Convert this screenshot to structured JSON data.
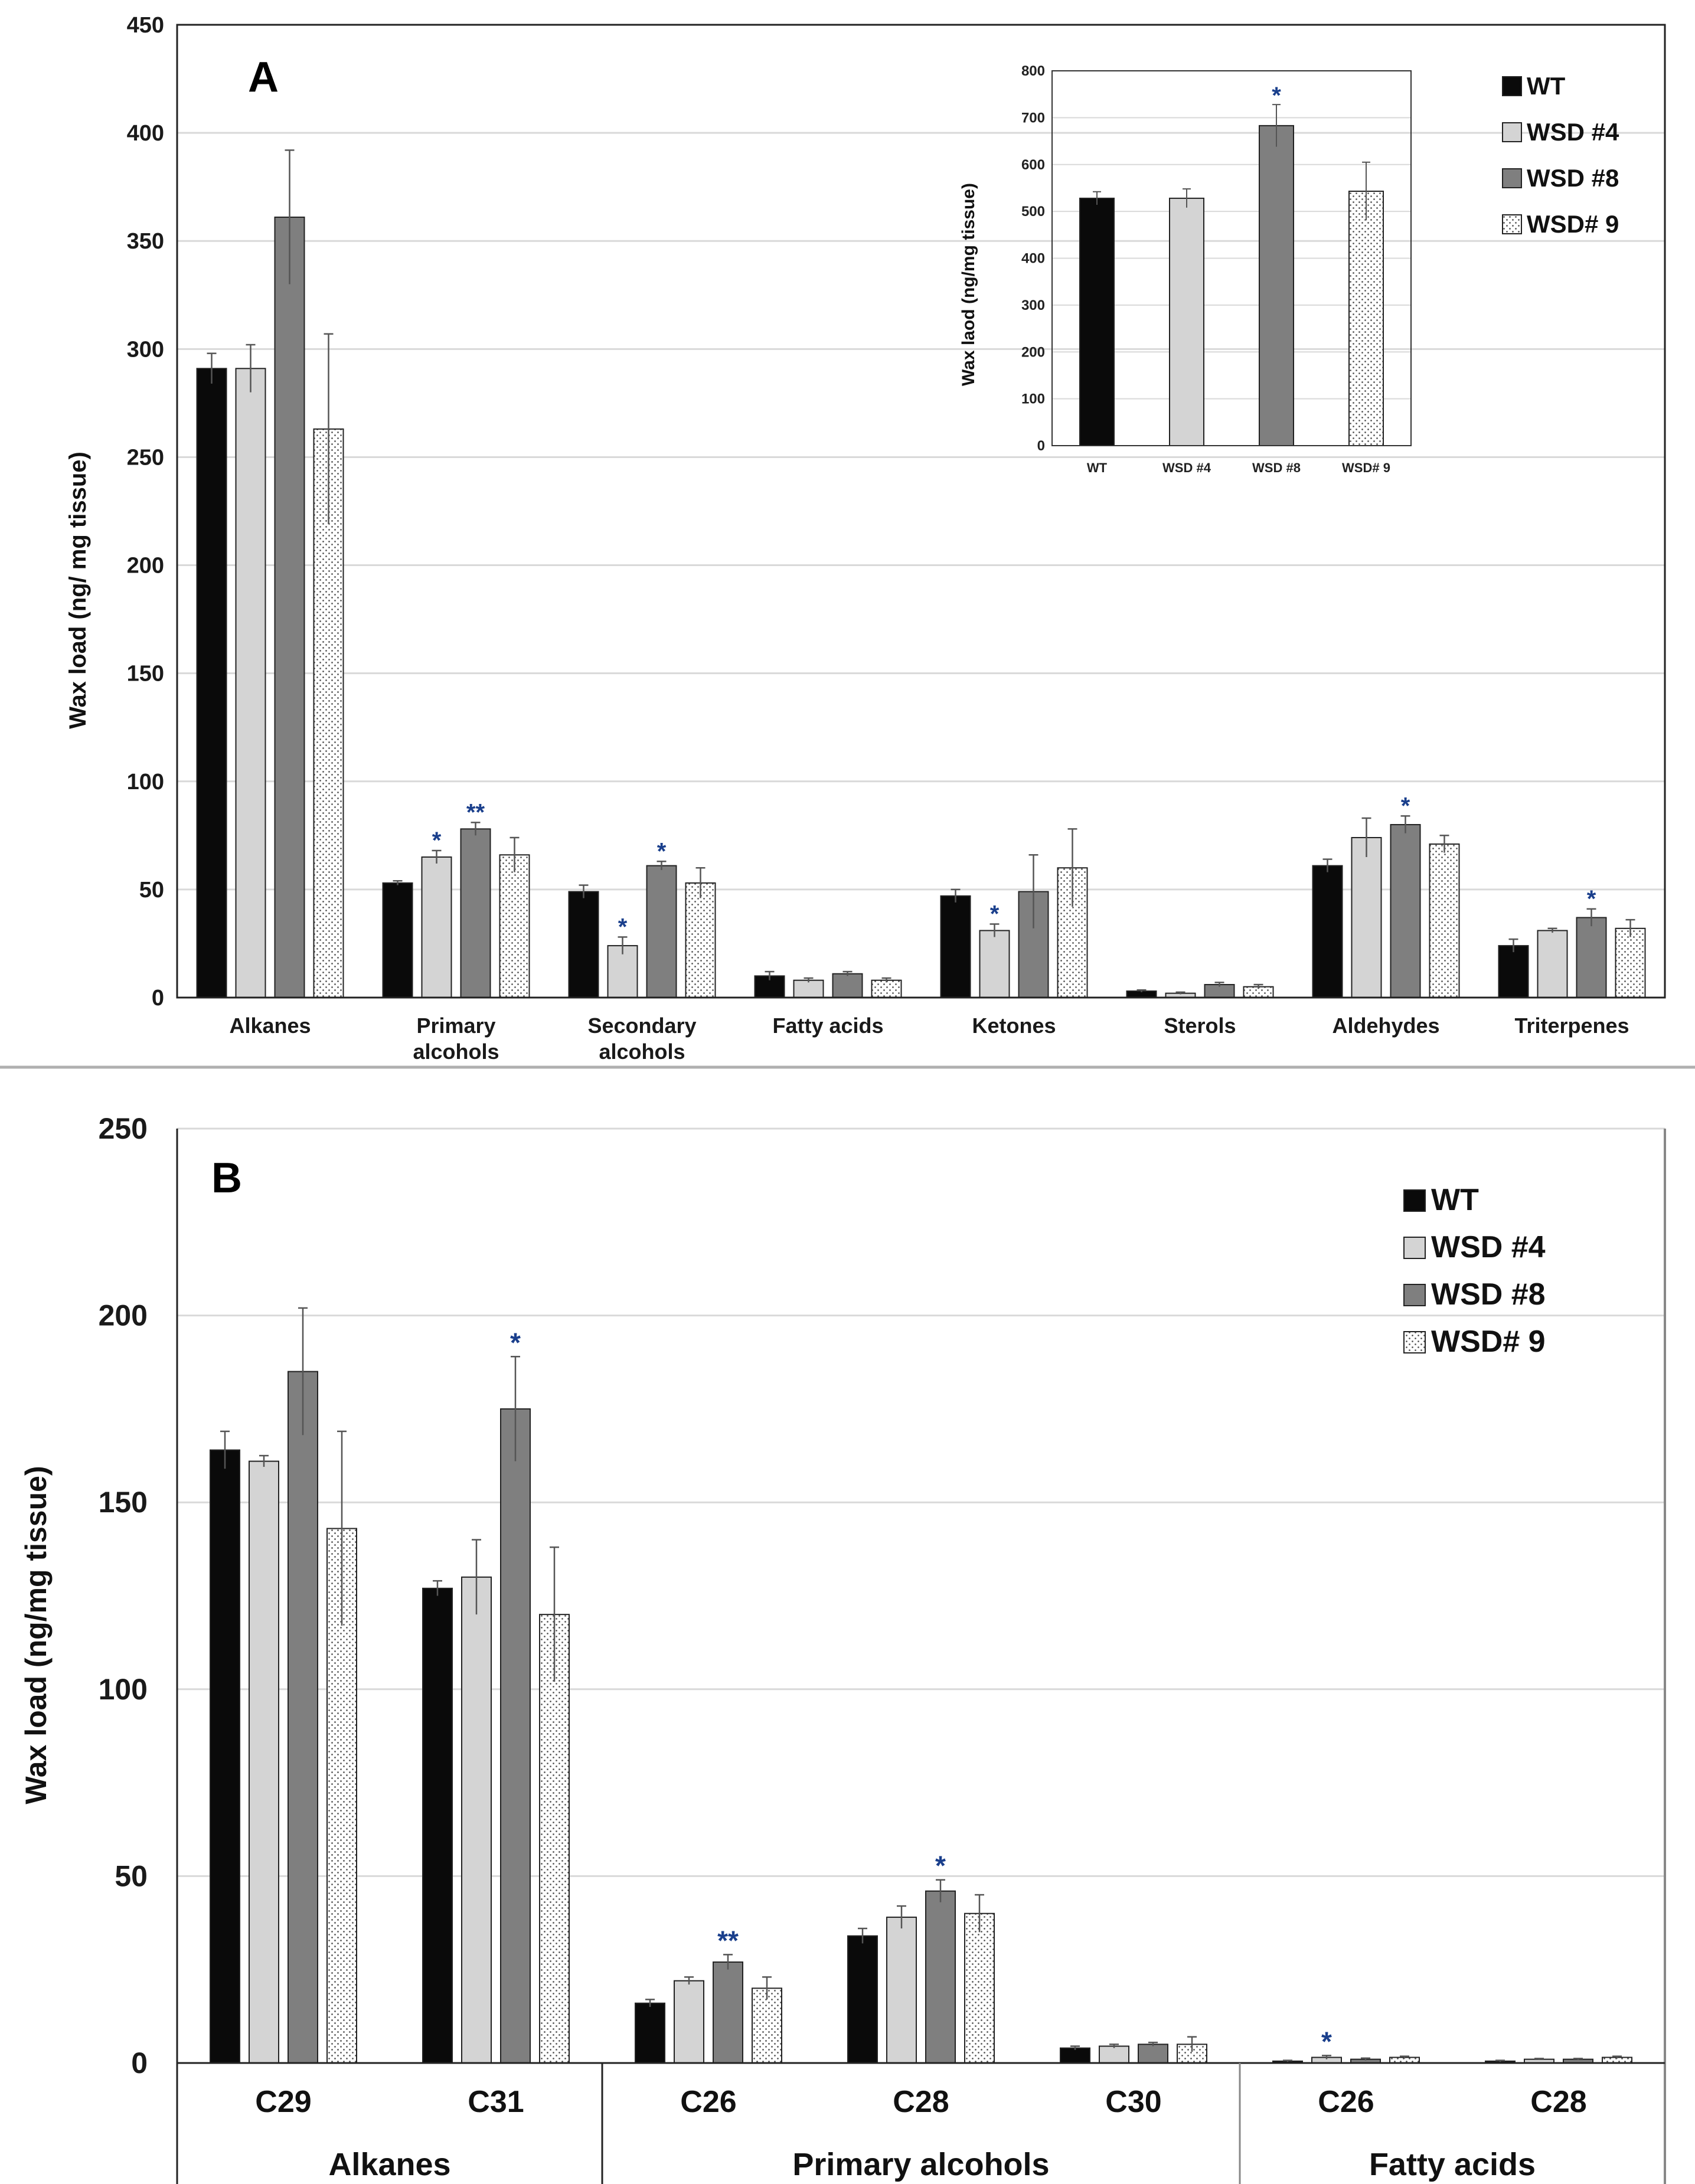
{
  "colors": {
    "WT": "#0a0a0a",
    "WSD #4": "#d4d4d4",
    "WSD #8": "#7f7f7f",
    "WSD# 9": "#ffffff",
    "grid": "#d9d9d9",
    "star": "#1a3f8c"
  },
  "chart_data": [
    {
      "id": "A",
      "type": "bar",
      "panel_label": "A",
      "ylabel": "Wax load (ng/ mg tissue)",
      "ylim": [
        0,
        450
      ],
      "yticks": [
        0,
        50,
        100,
        150,
        200,
        250,
        300,
        350,
        400,
        450
      ],
      "categories": [
        "Alkanes",
        "Primary\nalcohols",
        "Secondary\nalcohols",
        "Fatty acids",
        "Ketones",
        "Sterols",
        "Aldehydes",
        "Triterpenes"
      ],
      "series": [
        {
          "name": "WT",
          "values": [
            291,
            53,
            49,
            10,
            47,
            3,
            61,
            24
          ],
          "errors": [
            7,
            1,
            3,
            2,
            3,
            0.5,
            3,
            3
          ]
        },
        {
          "name": "WSD #4",
          "values": [
            291,
            65,
            24,
            8,
            31,
            2,
            74,
            31
          ],
          "errors": [
            11,
            3,
            4,
            1,
            3,
            0.5,
            9,
            1
          ]
        },
        {
          "name": "WSD #8",
          "values": [
            361,
            78,
            61,
            11,
            49,
            6,
            80,
            37
          ],
          "errors": [
            31,
            3,
            2,
            1,
            17,
            1,
            4,
            4
          ]
        },
        {
          "name": "WSD# 9",
          "values": [
            263,
            66,
            53,
            8,
            60,
            5,
            71,
            32
          ],
          "errors": [
            44,
            8,
            7,
            1,
            18,
            1,
            4,
            4
          ]
        }
      ],
      "significance": [
        {
          "category": 1,
          "series": 1,
          "mark": "*"
        },
        {
          "category": 1,
          "series": 2,
          "mark": "**"
        },
        {
          "category": 2,
          "series": 1,
          "mark": "*"
        },
        {
          "category": 2,
          "series": 2,
          "mark": "*"
        },
        {
          "category": 4,
          "series": 1,
          "mark": "*"
        },
        {
          "category": 6,
          "series": 2,
          "mark": "*"
        },
        {
          "category": 7,
          "series": 2,
          "mark": "*"
        }
      ],
      "legend": [
        "WT",
        "WSD #4",
        "WSD #8",
        "WSD# 9"
      ],
      "legend_position": "top-right",
      "inset": {
        "type": "bar",
        "ylabel": "Wax laod (ng/mg  tissue)",
        "ylim": [
          0,
          800
        ],
        "yticks": [
          0,
          100,
          200,
          300,
          400,
          500,
          600,
          700,
          800
        ],
        "categories": [
          "WT",
          "WSD #4",
          "WSD #8",
          "WSD# 9"
        ],
        "values": [
          528,
          528,
          683,
          543
        ],
        "errors": [
          14,
          20,
          45,
          62
        ],
        "significance": [
          {
            "category": 2,
            "mark": "*"
          }
        ]
      }
    },
    {
      "id": "B",
      "type": "bar",
      "panel_label": "B",
      "ylabel": "Wax load (ng/mg tissue)",
      "ylim": [
        0,
        250
      ],
      "yticks": [
        0,
        50,
        100,
        150,
        200,
        250
      ],
      "categories": [
        "C29",
        "C31",
        "C26",
        "C28",
        "C30",
        "C26",
        "C28"
      ],
      "groups": [
        {
          "name": "Alkanes",
          "count": 2
        },
        {
          "name": "Primary alcohols",
          "count": 3
        },
        {
          "name": "Fatty acids",
          "count": 2
        }
      ],
      "series": [
        {
          "name": "WT",
          "values": [
            164,
            127,
            16,
            34,
            4,
            0.5,
            0.5
          ],
          "errors": [
            5,
            2,
            1,
            2,
            0.5,
            0.2,
            0.2
          ]
        },
        {
          "name": "WSD #4",
          "values": [
            161,
            130,
            22,
            39,
            4.5,
            1.5,
            1
          ],
          "errors": [
            1.5,
            10,
            1,
            3,
            0.5,
            0.5,
            0.2
          ]
        },
        {
          "name": "WSD #8",
          "values": [
            185,
            175,
            27,
            46,
            5,
            1,
            1
          ],
          "errors": [
            17,
            14,
            2,
            3,
            0.5,
            0.3,
            0.2
          ]
        },
        {
          "name": "WSD# 9",
          "values": [
            143,
            120,
            20,
            40,
            5,
            1.5,
            1.5
          ],
          "errors": [
            26,
            18,
            3,
            5,
            2,
            0.3,
            0.3
          ]
        }
      ],
      "significance": [
        {
          "category": 1,
          "series": 2,
          "mark": "*"
        },
        {
          "category": 2,
          "series": 2,
          "mark": "**"
        },
        {
          "category": 3,
          "series": 2,
          "mark": "*"
        },
        {
          "category": 5,
          "series": 1,
          "mark": "*"
        }
      ],
      "legend": [
        "WT",
        "WSD #4",
        "WSD #8",
        "WSD# 9"
      ],
      "legend_position": "top-right"
    }
  ]
}
